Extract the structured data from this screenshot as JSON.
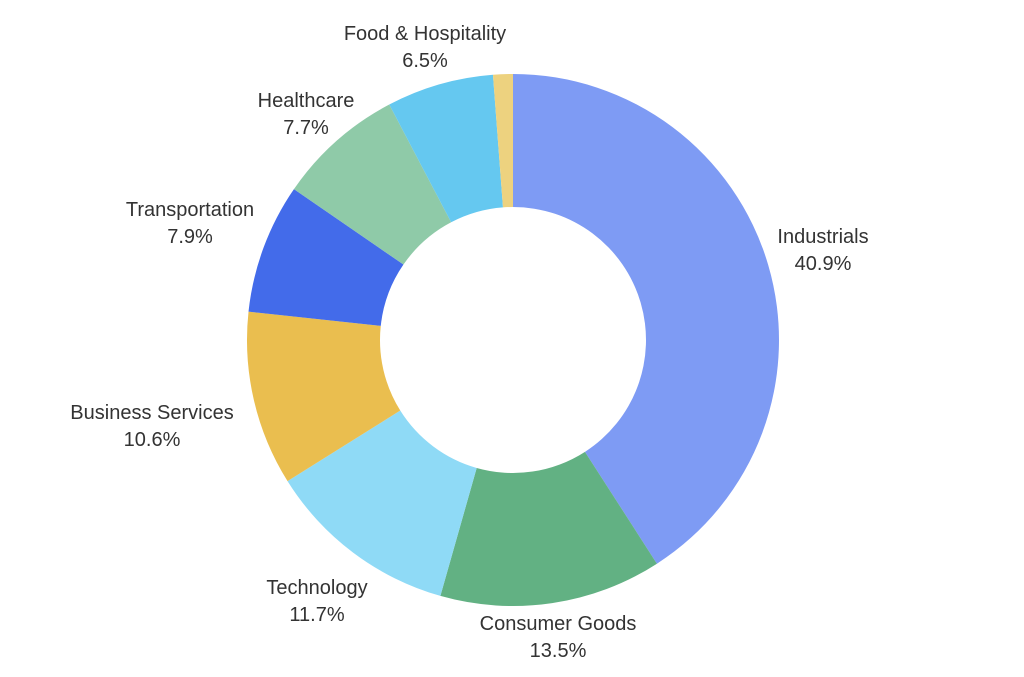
{
  "chart_data": {
    "type": "pie",
    "style": "donut",
    "title": "",
    "slices": [
      {
        "label": "Industrials",
        "value": 40.9,
        "value_label": "40.9%",
        "color": "#7e9bf4"
      },
      {
        "label": "Consumer Goods",
        "value": 13.5,
        "value_label": "13.5%",
        "color": "#62b183"
      },
      {
        "label": "Technology",
        "value": 11.7,
        "value_label": "11.7%",
        "color": "#8fdaf6"
      },
      {
        "label": "Business Services",
        "value": 10.6,
        "value_label": "10.6%",
        "color": "#eabe4f"
      },
      {
        "label": "Transportation",
        "value": 7.9,
        "value_label": "7.9%",
        "color": "#436bea"
      },
      {
        "label": "Healthcare",
        "value": 7.7,
        "value_label": "7.7%",
        "color": "#8fcaa8"
      },
      {
        "label": "Food & Hospitality",
        "value": 6.5,
        "value_label": "6.5%",
        "color": "#65c8f0"
      },
      {
        "label": null,
        "value": 1.2,
        "value_label": null,
        "color": "#edd27f"
      }
    ],
    "start": "top",
    "direction": "clockwise"
  }
}
